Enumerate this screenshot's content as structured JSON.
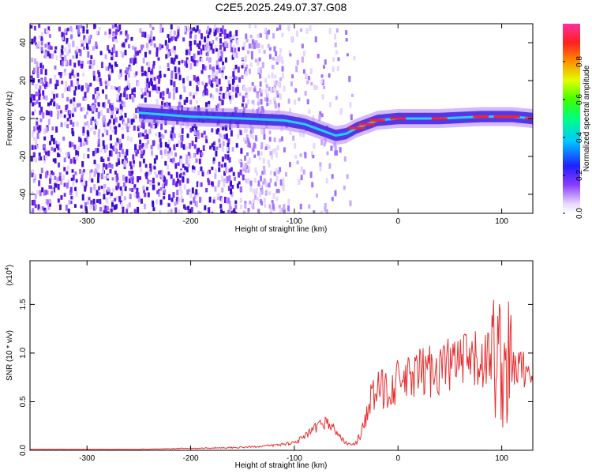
{
  "figure": {
    "title": "C2E5.2025.249.07.37.G08"
  },
  "chart_data": [
    {
      "type": "heatmap",
      "xlabel": "Height of straight line (km)",
      "ylabel": "Frequency (Hz)",
      "xlim": [
        -355,
        130
      ],
      "ylim": [
        -50,
        50
      ],
      "xticks": [
        -300,
        -200,
        -100,
        0,
        100
      ],
      "yticks": [
        -40,
        -20,
        0,
        20,
        40
      ],
      "colorbar": {
        "label": "Normalized spectral amplitude",
        "range": [
          0,
          1
        ],
        "ticks": [
          "0.0",
          "0.2",
          "0.4",
          "0.6",
          "0.8"
        ]
      },
      "ridge": [
        {
          "x": -250,
          "f": 3
        },
        {
          "x": -200,
          "f": 1
        },
        {
          "x": -150,
          "f": 0
        },
        {
          "x": -110,
          "f": -1
        },
        {
          "x": -90,
          "f": -3
        },
        {
          "x": -75,
          "f": -6
        },
        {
          "x": -60,
          "f": -9
        },
        {
          "x": -50,
          "f": -8
        },
        {
          "x": -40,
          "f": -5
        },
        {
          "x": -30,
          "f": -3
        },
        {
          "x": -20,
          "f": -1
        },
        {
          "x": 0,
          "f": 0
        },
        {
          "x": 40,
          "f": 0
        },
        {
          "x": 80,
          "f": 1
        },
        {
          "x": 100,
          "f": 1
        },
        {
          "x": 110,
          "f": 1
        },
        {
          "x": 130,
          "f": 0
        }
      ]
    },
    {
      "type": "line",
      "xlabel": "Height of straight line (km)",
      "ylabel": "SNR (10 * v/v)",
      "yscale_label": "(x10",
      "yscale_exp": "4",
      "xlim": [
        -355,
        130
      ],
      "ylim": [
        0,
        1.95
      ],
      "xticks": [
        -300,
        -200,
        -100,
        0,
        100
      ],
      "yticks": [
        "0.0",
        "0.5",
        "1.0",
        "1.5"
      ],
      "series": [
        {
          "color": "#e53030",
          "x": [
            -355,
            -300,
            -250,
            -200,
            -150,
            -120,
            -100,
            -90,
            -80,
            -70,
            -60,
            -55,
            -50,
            -45,
            -40,
            -35,
            -30,
            -25,
            -20,
            -10,
            0,
            10,
            20,
            30,
            40,
            50,
            60,
            70,
            80,
            90,
            95,
            100,
            105,
            110,
            115,
            120,
            130
          ],
          "y": [
            0.01,
            0.01,
            0.01,
            0.02,
            0.03,
            0.05,
            0.08,
            0.14,
            0.22,
            0.3,
            0.2,
            0.12,
            0.08,
            0.05,
            0.08,
            0.2,
            0.4,
            0.55,
            0.6,
            0.65,
            0.7,
            0.72,
            0.78,
            0.82,
            0.85,
            0.88,
            0.9,
            0.9,
            0.92,
            0.95,
            1.0,
            0.9,
            0.85,
            0.85,
            0.85,
            0.84,
            0.83
          ]
        }
      ]
    }
  ]
}
